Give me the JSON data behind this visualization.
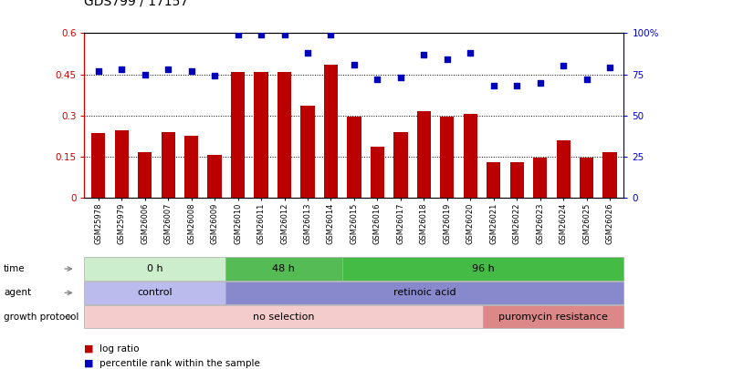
{
  "title": "GDS799 / 17157",
  "samples": [
    "GSM25978",
    "GSM25979",
    "GSM26006",
    "GSM26007",
    "GSM26008",
    "GSM26009",
    "GSM26010",
    "GSM26011",
    "GSM26012",
    "GSM26013",
    "GSM26014",
    "GSM26015",
    "GSM26016",
    "GSM26017",
    "GSM26018",
    "GSM26019",
    "GSM26020",
    "GSM26021",
    "GSM26022",
    "GSM26023",
    "GSM26024",
    "GSM26025",
    "GSM26026"
  ],
  "log_ratio": [
    0.235,
    0.245,
    0.165,
    0.24,
    0.225,
    0.155,
    0.46,
    0.46,
    0.46,
    0.335,
    0.485,
    0.295,
    0.185,
    0.24,
    0.315,
    0.295,
    0.305,
    0.13,
    0.13,
    0.145,
    0.21,
    0.145,
    0.165
  ],
  "percentile": [
    77,
    78,
    75,
    78,
    77,
    74,
    99,
    99,
    99,
    88,
    99,
    81,
    72,
    73,
    87,
    84,
    88,
    68,
    68,
    70,
    80,
    72,
    79
  ],
  "bar_color": "#bb0000",
  "dot_color": "#0000bb",
  "ylim_left": [
    0,
    0.6
  ],
  "ylim_right": [
    0,
    100
  ],
  "yticks_left": [
    0,
    0.15,
    0.3,
    0.45,
    0.6
  ],
  "yticks_right": [
    0,
    25,
    50,
    75,
    100
  ],
  "ytick_labels_left": [
    "0",
    "0.15",
    "0.3",
    "0.45",
    "0.6"
  ],
  "ytick_labels_right": [
    "0",
    "25",
    "50",
    "75",
    "100%"
  ],
  "time_groups": [
    {
      "label": "0 h",
      "start": 0,
      "end": 6,
      "color": "#cceecc"
    },
    {
      "label": "48 h",
      "start": 6,
      "end": 11,
      "color": "#55bb55"
    },
    {
      "label": "96 h",
      "start": 11,
      "end": 23,
      "color": "#44bb44"
    }
  ],
  "agent_groups": [
    {
      "label": "control",
      "start": 0,
      "end": 6,
      "color": "#bbbbee"
    },
    {
      "label": "retinoic acid",
      "start": 6,
      "end": 23,
      "color": "#8888cc"
    }
  ],
  "growth_groups": [
    {
      "label": "no selection",
      "start": 0,
      "end": 17,
      "color": "#f5cccc"
    },
    {
      "label": "puromycin resistance",
      "start": 17,
      "end": 23,
      "color": "#dd8888"
    }
  ],
  "row_labels": [
    "time",
    "agent",
    "growth protocol"
  ],
  "bg_color": "#ffffff",
  "left_axis_color": "#cc0000",
  "right_axis_color": "#0000cc"
}
